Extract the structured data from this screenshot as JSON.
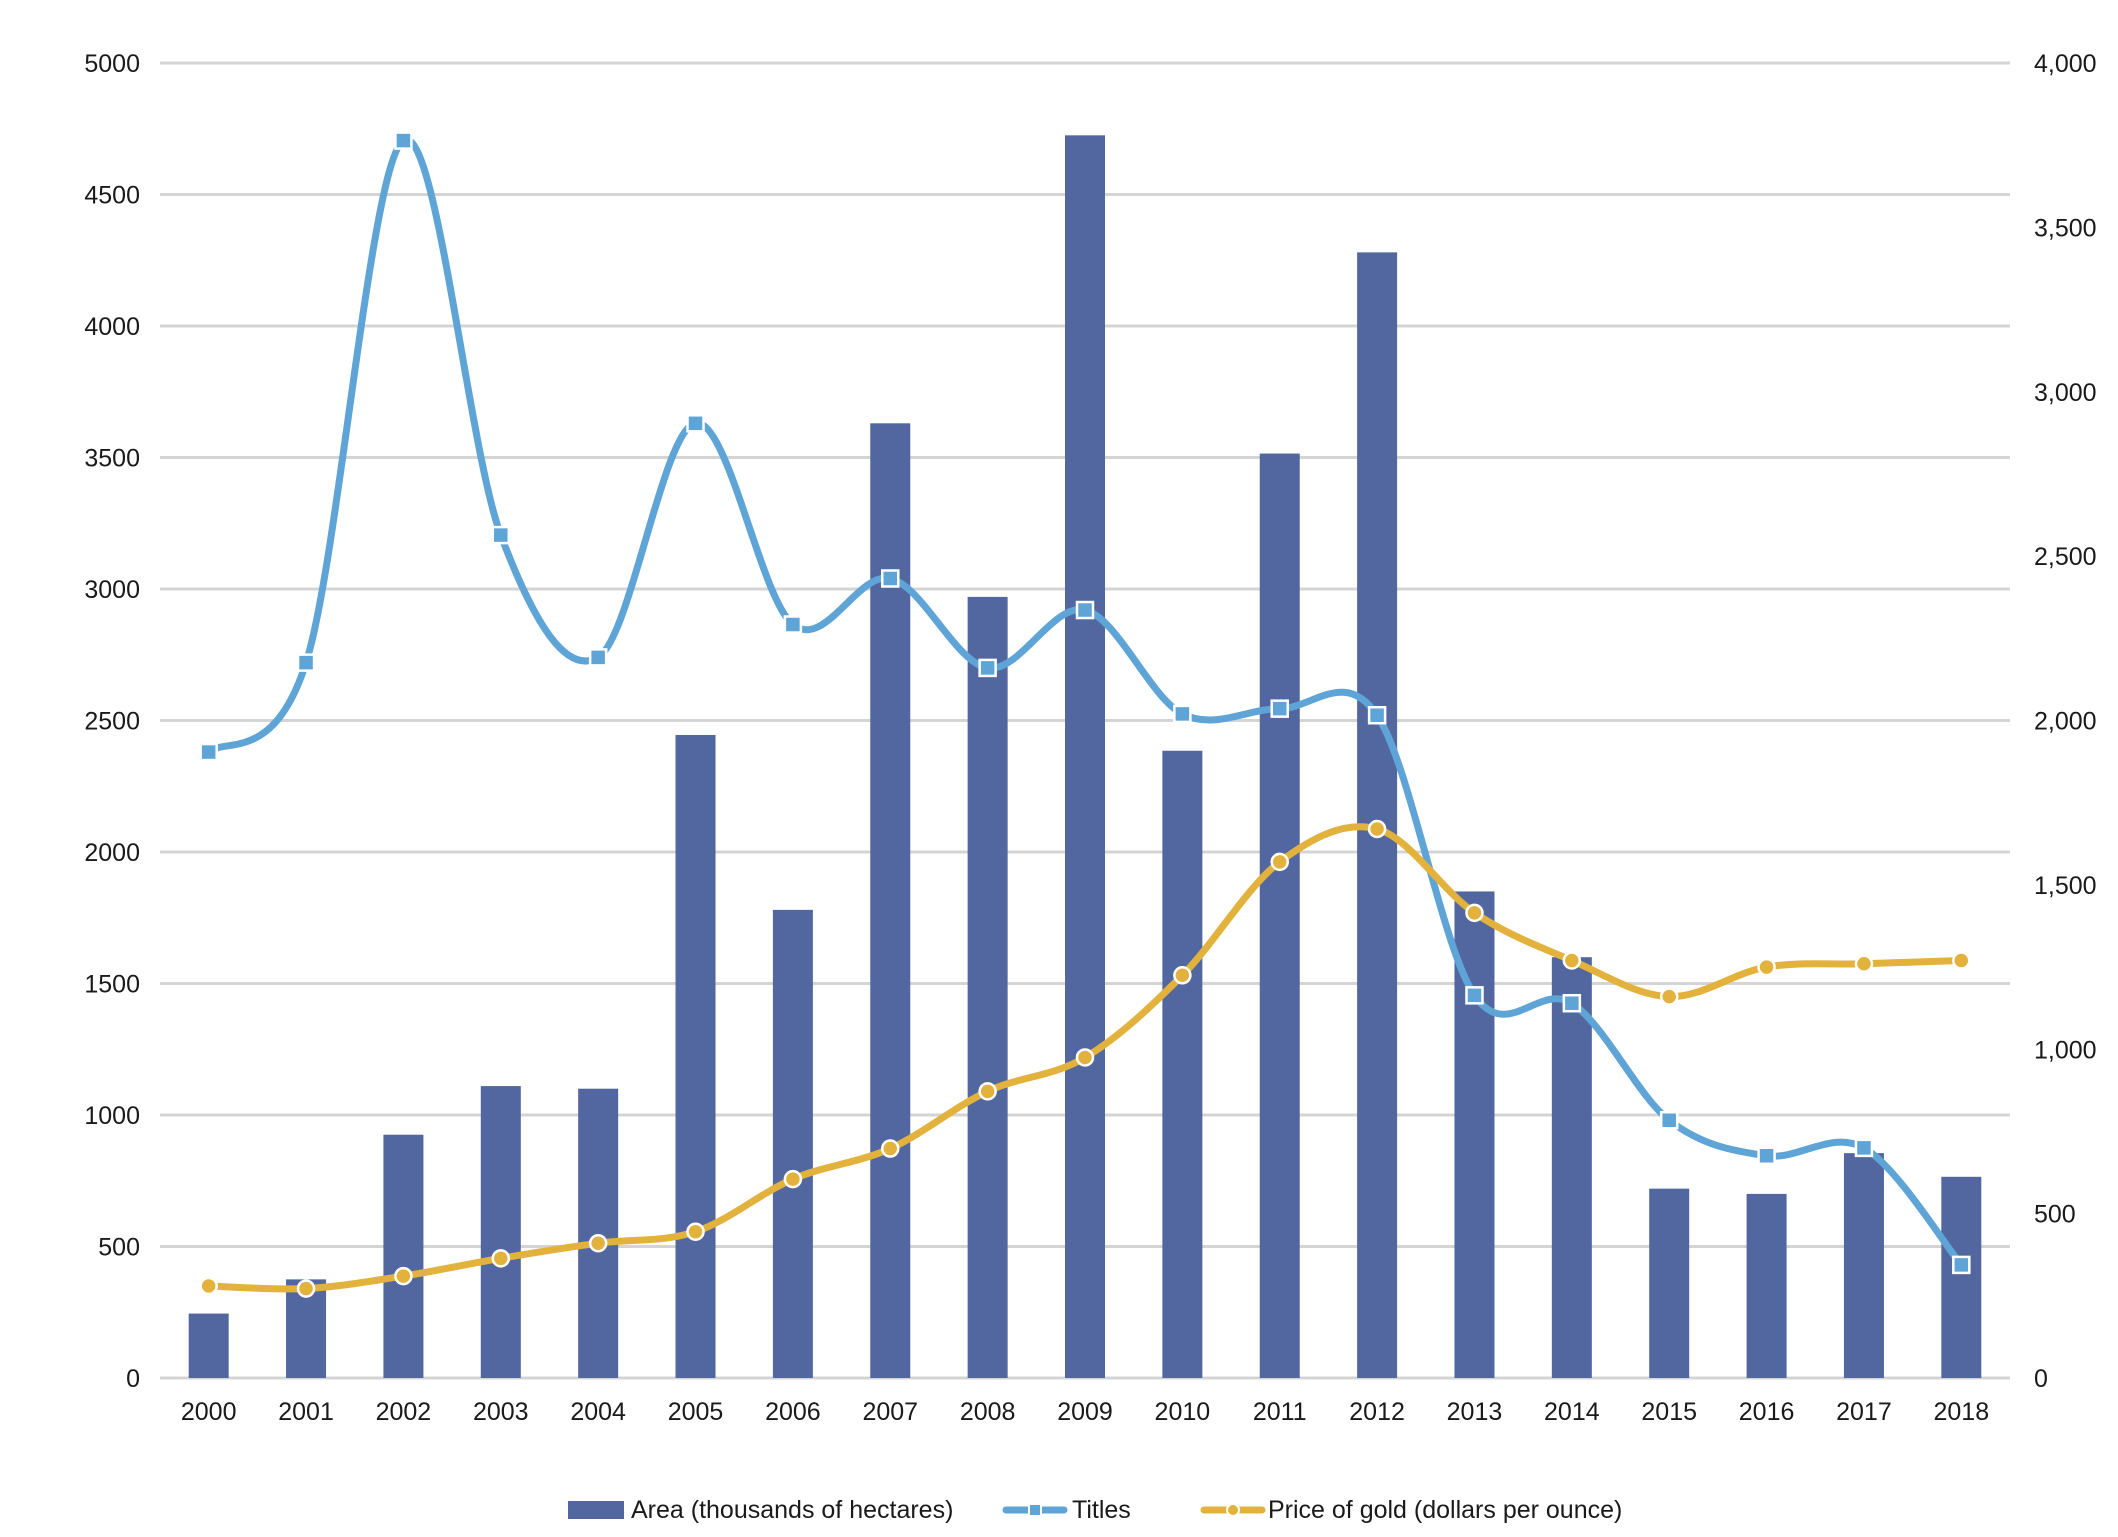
{
  "chart_data": {
    "type": "bar",
    "title": "",
    "categories": [
      "2000",
      "2001",
      "2002",
      "2003",
      "2004",
      "2005",
      "2006",
      "2007",
      "2008",
      "2009",
      "2010",
      "2011",
      "2012",
      "2013",
      "2014",
      "2015",
      "2016",
      "2017",
      "2018"
    ],
    "y_left": {
      "min": 0,
      "max": 5000,
      "ticks": [
        0,
        500,
        1000,
        1500,
        2000,
        2500,
        3000,
        3500,
        4000,
        4500,
        5000
      ],
      "tick_labels": [
        "0",
        "500",
        "1000",
        "1500",
        "2000",
        "2500",
        "3000",
        "3500",
        "4000",
        "4500",
        "5000"
      ]
    },
    "y_right": {
      "min": 0,
      "max": 4000,
      "ticks": [
        0,
        500,
        1000,
        1500,
        2000,
        2500,
        3000,
        3500,
        4000
      ],
      "tick_labels": [
        "0",
        "500",
        "1,000",
        "1,500",
        "2,000",
        "2,500",
        "3,000",
        "3,500",
        "4,000"
      ]
    },
    "grid": true,
    "legend_position": "bottom-center",
    "series": [
      {
        "name": "Area (thousands of hectares)",
        "type": "bar",
        "axis": "left",
        "color": "#5267a0",
        "values": [
          245,
          375,
          925,
          1110,
          1100,
          2445,
          1780,
          3630,
          2970,
          4725,
          2385,
          3515,
          4280,
          1850,
          1600,
          720,
          700,
          855,
          765
        ]
      },
      {
        "name": "Titles",
        "type": "line",
        "axis": "left",
        "color": "#5ea4d6",
        "marker": "square",
        "values": [
          2380,
          2720,
          4705,
          3205,
          2740,
          3630,
          2865,
          3040,
          2700,
          2920,
          2525,
          2545,
          2520,
          1455,
          1425,
          980,
          845,
          875,
          430
        ]
      },
      {
        "name": "Price of gold (dollars per ounce)",
        "type": "line",
        "axis": "right",
        "color": "#e3b23c",
        "marker": "circle",
        "values": [
          280,
          272,
          310,
          364,
          410,
          445,
          605,
          698,
          872,
          975,
          1225,
          1570,
          1670,
          1415,
          1270,
          1160,
          1250,
          1260,
          1270
        ]
      }
    ]
  }
}
